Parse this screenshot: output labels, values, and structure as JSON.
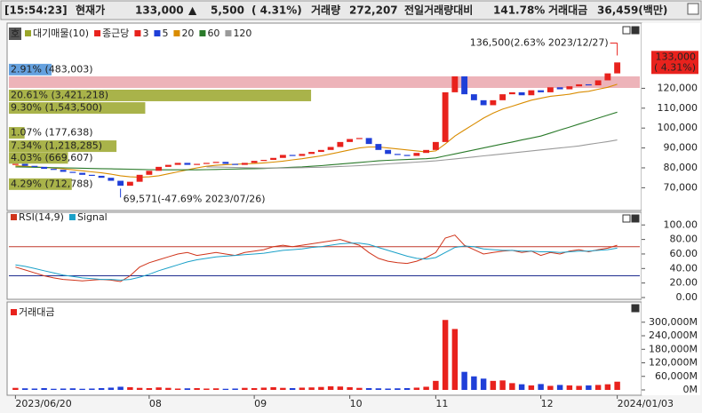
{
  "header": {
    "time": "[15:54:23]",
    "price_label": "현재가",
    "price": "133,000",
    "arrow": "▲",
    "change": "5,500",
    "change_pct": "( 4.31%)",
    "volume_label": "거래량",
    "volume": "272,207",
    "prev_ratio_label": "전일거래량대비",
    "prev_ratio": "141.78%",
    "amount_label": "거래대금",
    "amount": "36,459(백만)"
  },
  "chart_data": [
    {
      "type": "candlestick",
      "badge": "호",
      "categories": [
        "2023/06/20",
        null,
        null,
        null,
        null,
        null,
        null,
        null,
        null,
        null,
        null,
        null,
        null,
        null,
        "08",
        null,
        null,
        null,
        null,
        null,
        null,
        null,
        null,
        null,
        null,
        "09",
        null,
        null,
        null,
        null,
        null,
        null,
        null,
        null,
        null,
        "10",
        null,
        null,
        null,
        null,
        null,
        null,
        null,
        null,
        "11",
        null,
        null,
        null,
        null,
        null,
        null,
        null,
        null,
        null,
        null,
        "12",
        null,
        null,
        null,
        null,
        null,
        null,
        null,
        "2024/01/03"
      ],
      "down_color": "#1f3fd8",
      "series": [
        {
          "name": "종근당",
          "color": "#e8221d",
          "values": [
            82000,
            81000,
            80500,
            79500,
            79000,
            78000,
            77500,
            76500,
            76000,
            75000,
            73500,
            71000,
            73000,
            76500,
            78500,
            80500,
            81500,
            82500,
            81500,
            82000,
            82500,
            83000,
            82000,
            81500,
            82500,
            83500,
            84000,
            85000,
            86500,
            86000,
            87000,
            88000,
            89000,
            90500,
            93000,
            94500,
            95000,
            92000,
            89000,
            87000,
            86500,
            86000,
            87500,
            89000,
            93000,
            118000,
            126000,
            117000,
            114000,
            111500,
            114000,
            117000,
            118000,
            116500,
            119000,
            118000,
            120500,
            119500,
            121000,
            122000,
            121500,
            124000,
            127500,
            133000
          ]
        },
        {
          "name": "20",
          "color": "#d98c00",
          "values": [
            81000,
            80800,
            80500,
            80200,
            79900,
            79500,
            79000,
            78500,
            78000,
            77500,
            76800,
            76000,
            75500,
            75300,
            75500,
            76000,
            77000,
            78000,
            79000,
            80000,
            80800,
            81300,
            81600,
            81800,
            82000,
            82200,
            82500,
            82900,
            83400,
            84000,
            84600,
            85300,
            86000,
            87000,
            88000,
            89000,
            90000,
            90500,
            90500,
            90000,
            89500,
            89000,
            88500,
            88000,
            88500,
            92000,
            96000,
            99000,
            102000,
            105000,
            107500,
            109500,
            111000,
            112500,
            114000,
            115000,
            116000,
            116500,
            117000,
            118000,
            118500,
            119500,
            120500,
            122000
          ]
        },
        {
          "name": "60",
          "color": "#2a7a2a",
          "values": [
            80500,
            80400,
            80300,
            80200,
            80100,
            80000,
            79900,
            79800,
            79700,
            79600,
            79500,
            79400,
            79300,
            79200,
            79100,
            79000,
            79000,
            79000,
            79000,
            79000,
            79100,
            79200,
            79300,
            79400,
            79500,
            79600,
            79700,
            79900,
            80100,
            80300,
            80500,
            80800,
            81100,
            81500,
            81900,
            82300,
            82700,
            83100,
            83500,
            83800,
            84000,
            84200,
            84400,
            84600,
            85000,
            86000,
            87000,
            88000,
            89000,
            90000,
            91000,
            92000,
            93000,
            94000,
            95000,
            96000,
            97500,
            99000,
            100500,
            102000,
            103500,
            105000,
            106500,
            108000
          ]
        },
        {
          "name": "120",
          "color": "#9a9a9a",
          "values": [
            null,
            null,
            null,
            null,
            null,
            null,
            null,
            null,
            null,
            null,
            null,
            null,
            null,
            null,
            null,
            null,
            null,
            null,
            null,
            null,
            80500,
            80400,
            80300,
            80200,
            80100,
            80000,
            79900,
            79900,
            79900,
            80000,
            80100,
            80200,
            80300,
            80500,
            80700,
            80900,
            81100,
            81400,
            81700,
            82000,
            82300,
            82600,
            82900,
            83200,
            83500,
            84000,
            84500,
            85000,
            85500,
            86000,
            86500,
            87000,
            87500,
            88000,
            88500,
            89000,
            89500,
            90000,
            90500,
            91000,
            91800,
            92500,
            93200,
            94000
          ]
        }
      ],
      "legend": [
        {
          "name": "3",
          "color": "#e8221d"
        },
        {
          "name": "5",
          "color": "#1f3fd8"
        }
      ],
      "volume_profile": {
        "name": "대기매물(10)",
        "color": "#9aa62a",
        "items": [
          {
            "label": "2.91% (483,003)",
            "value": 2.91,
            "price": 129400,
            "color": "#4a90d9"
          },
          {
            "label": "20.61% (3,421,218)",
            "value": 20.61,
            "price": 116400,
            "color": "#9aa62a"
          },
          {
            "label": "9.30% (1,543,500)",
            "value": 9.3,
            "price": 110100,
            "color": "#9aa62a"
          },
          {
            "label": "1.07% (177,638)",
            "value": 1.07,
            "price": 97600,
            "color": "#9aa62a"
          },
          {
            "label": "7.34% (1,218,285)",
            "value": 7.34,
            "price": 90900,
            "color": "#9aa62a"
          },
          {
            "label": "4.03% (669,607)",
            "value": 4.03,
            "price": 85000,
            "color": "#9aa62a"
          },
          {
            "label": "4.29% (712,788)",
            "value": 4.29,
            "price": 71800,
            "color": "#9aa62a"
          }
        ]
      },
      "annotations": [
        {
          "text": "136,500(2.63% 2023/12/27)",
          "value": 136500
        },
        {
          "text": "69,571(-47.69% 2023/07/26)",
          "value": 69571
        }
      ],
      "last_label": {
        "price": "133,000",
        "change": "( 4.31%)"
      },
      "ylim": [
        59000,
        151000
      ],
      "yticks": [
        {
          "value": 70000,
          "label": "70,000"
        },
        {
          "value": 80000,
          "label": "80,000"
        },
        {
          "value": 90000,
          "label": "90,000"
        },
        {
          "value": 100000,
          "label": "100,000"
        },
        {
          "value": 110000,
          "label": "110,000"
        },
        {
          "value": 120000,
          "label": "120,000"
        }
      ]
    },
    {
      "type": "line",
      "series": [
        {
          "name": "RSI(14,9)",
          "color": "#d0341a",
          "values": [
            42,
            38,
            34,
            30,
            27,
            25,
            24,
            23,
            24,
            25,
            24,
            22,
            30,
            42,
            48,
            52,
            56,
            60,
            62,
            58,
            60,
            62,
            60,
            58,
            62,
            64,
            66,
            70,
            72,
            70,
            72,
            74,
            76,
            78,
            80,
            76,
            72,
            62,
            54,
            50,
            48,
            47,
            50,
            55,
            62,
            82,
            86,
            72,
            66,
            60,
            62,
            64,
            65,
            62,
            64,
            58,
            62,
            60,
            64,
            66,
            63,
            66,
            68,
            72
          ]
        },
        {
          "name": "Signal",
          "color": "#1aa0c8",
          "values": [
            45,
            43,
            40,
            37,
            34,
            31,
            29,
            27,
            26,
            25,
            25,
            24,
            25,
            28,
            32,
            37,
            41,
            45,
            49,
            52,
            54,
            56,
            57,
            58,
            59,
            60,
            61,
            63,
            65,
            66,
            67,
            69,
            70,
            72,
            74,
            75,
            75,
            73,
            69,
            65,
            61,
            57,
            54,
            53,
            55,
            62,
            69,
            71,
            70,
            67,
            66,
            65,
            65,
            64,
            64,
            63,
            63,
            62,
            63,
            64,
            64,
            65,
            66,
            68
          ]
        }
      ],
      "hlines": [
        {
          "value": 70,
          "color": "#c0392b"
        },
        {
          "value": 30,
          "color": "#1e2d8f"
        }
      ],
      "ylim": [
        0,
        115
      ],
      "yticks": [
        {
          "value": 0,
          "label": "0.00"
        },
        {
          "value": 20,
          "label": "20.00"
        },
        {
          "value": 40,
          "label": "40.00"
        },
        {
          "value": 60,
          "label": "60.00"
        },
        {
          "value": 80,
          "label": "80.00"
        },
        {
          "value": 100,
          "label": "100.00"
        }
      ]
    },
    {
      "type": "bar",
      "series": [
        {
          "name": "거래대금",
          "color": "#e8221d",
          "values": [
            9000,
            7000,
            6000,
            8000,
            5000,
            6000,
            7000,
            5000,
            6000,
            8000,
            10000,
            14000,
            12000,
            9000,
            8000,
            11000,
            9000,
            6000,
            7000,
            8000,
            6000,
            7000,
            5000,
            6000,
            9000,
            8000,
            10000,
            12000,
            9000,
            8000,
            10000,
            11000,
            13000,
            16000,
            15000,
            12000,
            9000,
            8000,
            7000,
            6000,
            7000,
            8000,
            10000,
            14000,
            40000,
            310000,
            270000,
            80000,
            60000,
            50000,
            40000,
            42000,
            30000,
            25000,
            20000,
            26000,
            18000,
            22000,
            20000,
            18000,
            20000,
            22000,
            25000,
            36459
          ]
        }
      ],
      "down_color": "#1f3fd8",
      "ylim": [
        0,
        370000
      ],
      "yticks": [
        {
          "value": 0,
          "label": "0M"
        },
        {
          "value": 60000,
          "label": "60,000M"
        },
        {
          "value": 120000,
          "label": "120,000M"
        },
        {
          "value": 180000,
          "label": "180,000M"
        },
        {
          "value": 240000,
          "label": "240,000M"
        },
        {
          "value": 300000,
          "label": "300,000M"
        }
      ]
    }
  ]
}
